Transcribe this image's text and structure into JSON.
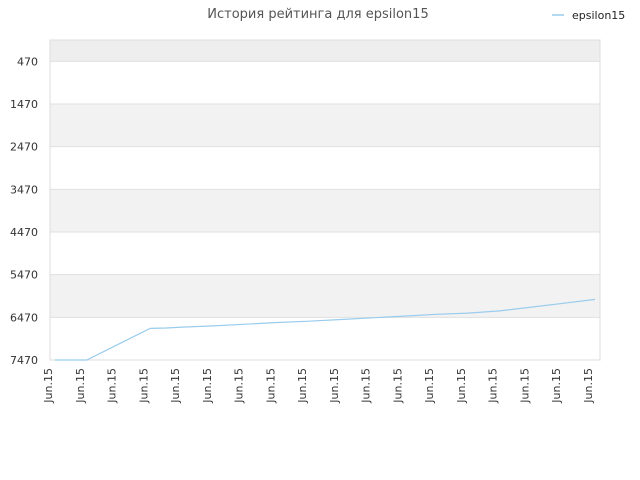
{
  "chart_data": {
    "type": "line",
    "title": "История рейтинга для epsilon15",
    "legend": {
      "position": "top-right"
    },
    "colors": {
      "series": "#99ccee",
      "band_shaded": "#f2f2f2",
      "band_top": "#eeeeee",
      "gridline": "#e0e0e0"
    },
    "y_axis": {
      "reversed": true,
      "ylim": [
        -30,
        7470
      ],
      "ticks": [
        470,
        1470,
        2470,
        3470,
        4470,
        5470,
        6470,
        7470
      ]
    },
    "x_axis": {
      "categories": [
        "Jun.15",
        "Jun.15",
        "Jun.15",
        "Jun.15",
        "Jun.15",
        "Jun.15",
        "Jun.15",
        "Jun.15",
        "Jun.15",
        "Jun.15",
        "Jun.15",
        "Jun.15",
        "Jun.15",
        "Jun.15",
        "Jun.15",
        "Jun.15",
        "Jun.15",
        "Jun.15"
      ]
    },
    "series": [
      {
        "name": "epsilon15",
        "x": [
          0,
          1,
          2,
          3,
          3.5,
          4,
          5,
          6,
          7,
          8,
          9,
          10,
          11,
          12,
          13,
          14,
          15,
          16,
          17
        ],
        "values": [
          7470,
          7470,
          7100,
          6730,
          6720,
          6700,
          6670,
          6630,
          6590,
          6560,
          6520,
          6480,
          6440,
          6400,
          6370,
          6320,
          6230,
          6140,
          6050
        ]
      }
    ]
  }
}
